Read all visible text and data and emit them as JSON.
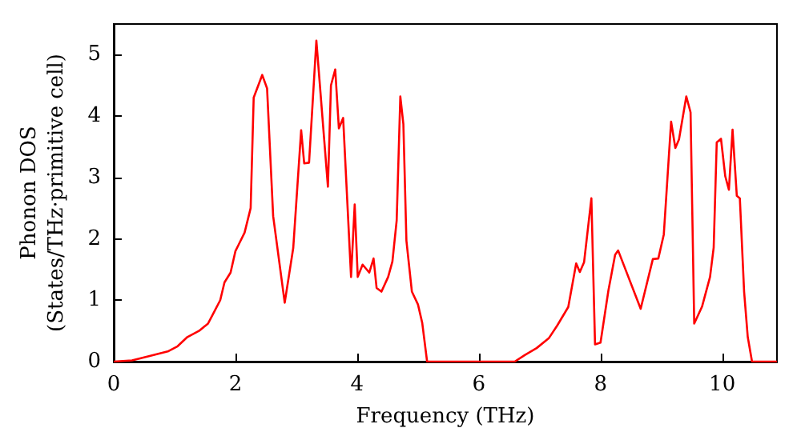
{
  "chart_data": {
    "type": "line",
    "xlabel": "Frequency (THz)",
    "ylabel": "Phonon DOS\n(States/THz·primitive cell)",
    "xlim": [
      0,
      10.9
    ],
    "ylim": [
      0,
      5.5
    ],
    "xticks": [
      0,
      2,
      4,
      6,
      8,
      10
    ],
    "yticks": [
      0,
      1,
      2,
      3,
      4,
      5
    ],
    "grid": false,
    "marker": "none",
    "line_style": "solid",
    "series": [
      {
        "color": "#ff0000",
        "x": [
          0,
          0.3,
          0.59,
          0.9,
          1.05,
          1.21,
          1.4,
          1.55,
          1.65,
          1.75,
          1.82,
          1.92,
          2.0,
          2.05,
          2.15,
          2.25,
          2.3,
          2.44,
          2.52,
          2.62,
          2.81,
          2.95,
          3.08,
          3.13,
          3.21,
          3.33,
          3.52,
          3.57,
          3.64,
          3.7,
          3.77,
          3.9,
          3.96,
          4.01,
          4.09,
          4.2,
          4.27,
          4.32,
          4.4,
          4.51,
          4.58,
          4.65,
          4.71,
          4.76,
          4.81,
          4.9,
          5.0,
          5.07,
          5.15,
          6.59,
          6.76,
          6.95,
          7.15,
          7.29,
          7.47,
          7.6,
          7.66,
          7.73,
          7.85,
          7.91,
          8.0,
          8.13,
          8.24,
          8.29,
          8.66,
          8.86,
          8.95,
          9.04,
          9.16,
          9.23,
          9.29,
          9.41,
          9.48,
          9.54,
          9.67,
          9.8,
          9.86,
          9.91,
          9.98,
          10.05,
          10.11,
          10.17,
          10.24,
          10.29,
          10.36,
          10.42,
          10.49,
          10.9
        ],
        "values": [
          0,
          0.02,
          0.09,
          0.17,
          0.25,
          0.4,
          0.5,
          0.62,
          0.81,
          1.0,
          1.29,
          1.45,
          1.8,
          1.9,
          2.1,
          2.5,
          4.3,
          4.67,
          4.45,
          2.37,
          0.96,
          1.85,
          3.77,
          3.23,
          3.24,
          5.23,
          2.85,
          4.5,
          4.76,
          3.8,
          3.97,
          1.38,
          2.56,
          1.38,
          1.58,
          1.45,
          1.68,
          1.2,
          1.14,
          1.38,
          1.63,
          2.3,
          4.32,
          3.87,
          1.97,
          1.14,
          0.93,
          0.63,
          0,
          0,
          0.11,
          0.22,
          0.38,
          0.59,
          0.89,
          1.6,
          1.46,
          1.62,
          2.66,
          0.28,
          0.31,
          1.16,
          1.74,
          1.81,
          0.86,
          1.67,
          1.68,
          2.07,
          3.91,
          3.48,
          3.62,
          4.32,
          4.06,
          0.62,
          0.9,
          1.38,
          1.86,
          3.57,
          3.63,
          3.02,
          2.8,
          3.78,
          2.7,
          2.66,
          1.14,
          0.4,
          0,
          0
        ]
      }
    ]
  }
}
